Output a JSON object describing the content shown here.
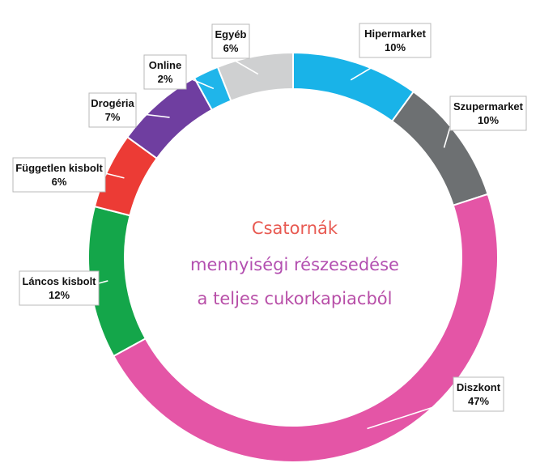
{
  "chart_data": {
    "type": "pie",
    "donut": true,
    "center_text": [
      {
        "text": "Csatornák",
        "color": "#e85a52"
      },
      {
        "text": "mennyiségi részesedése",
        "color": "#b34fb0"
      },
      {
        "text": "a teljes cukorkapiacból",
        "color": "#b84fa8"
      }
    ],
    "slices": [
      {
        "label": "Hipermarket",
        "value_label": "10%",
        "value": 10,
        "color": "#19b3e8"
      },
      {
        "label": "Szupermarket",
        "value_label": "10%",
        "value": 10,
        "color": "#6d7072"
      },
      {
        "label": "Diszkont",
        "value_label": "47%",
        "value": 47,
        "color": "#e455a6"
      },
      {
        "label": "Láncos kisbolt",
        "value_label": "12%",
        "value": 12,
        "color": "#14a64a"
      },
      {
        "label": "Független kisbolt",
        "value_label": "6%",
        "value": 6,
        "color": "#ec3b35"
      },
      {
        "label": "Drogéria",
        "value_label": "7%",
        "value": 7,
        "color": "#6f3ea0"
      },
      {
        "label": "Online",
        "value_label": "2%",
        "value": 2,
        "color": "#1fb5ea"
      },
      {
        "label": "Egyéb",
        "value_label": "6%",
        "value": 6,
        "color": "#cfd0d1"
      }
    ],
    "start": "12 o'clock",
    "direction": "clockwise"
  }
}
